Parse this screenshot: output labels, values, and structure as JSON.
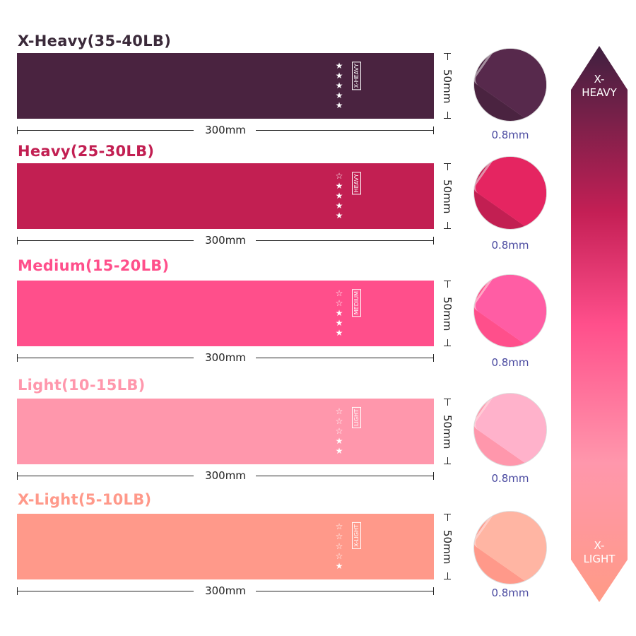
{
  "bands": [
    {
      "title": "X-Heavy(35-40LB)",
      "tag": "X-HEAVY",
      "stars_filled": 5,
      "stars_total": 5,
      "length": "300mm",
      "width": "50mm",
      "thickness": "0.8mm",
      "color": "#4a2340",
      "title_color": "#3b2a3a"
    },
    {
      "title": "Heavy(25-30LB)",
      "tag": "HEAVY",
      "stars_filled": 4,
      "stars_total": 5,
      "length": "300mm",
      "width": "50mm",
      "thickness": "0.8mm",
      "color": "#c21f52",
      "title_color": "#c21f52"
    },
    {
      "title": "Medium(15-20LB)",
      "tag": "MEDIUM",
      "stars_filled": 3,
      "stars_total": 5,
      "length": "300mm",
      "width": "50mm",
      "thickness": "0.8mm",
      "color": "#ff4f8b",
      "title_color": "#ff4f8b"
    },
    {
      "title": "Light(10-15LB)",
      "tag": "LIGHT",
      "stars_filled": 2,
      "stars_total": 5,
      "length": "300mm",
      "width": "50mm",
      "thickness": "0.8mm",
      "color": "#ff97ac",
      "title_color": "#ff97ac"
    },
    {
      "title": "X-Light(5-10LB)",
      "tag": "X-LIGHT",
      "stars_filled": 1,
      "stars_total": 5,
      "length": "300mm",
      "width": "50mm",
      "thickness": "0.8mm",
      "color": "#ff998a",
      "title_color": "#ff998a"
    }
  ],
  "scale": {
    "top_label_1": "X-",
    "top_label_2": "HEAVY",
    "bottom_label_1": "X-",
    "bottom_label_2": "LIGHT"
  }
}
